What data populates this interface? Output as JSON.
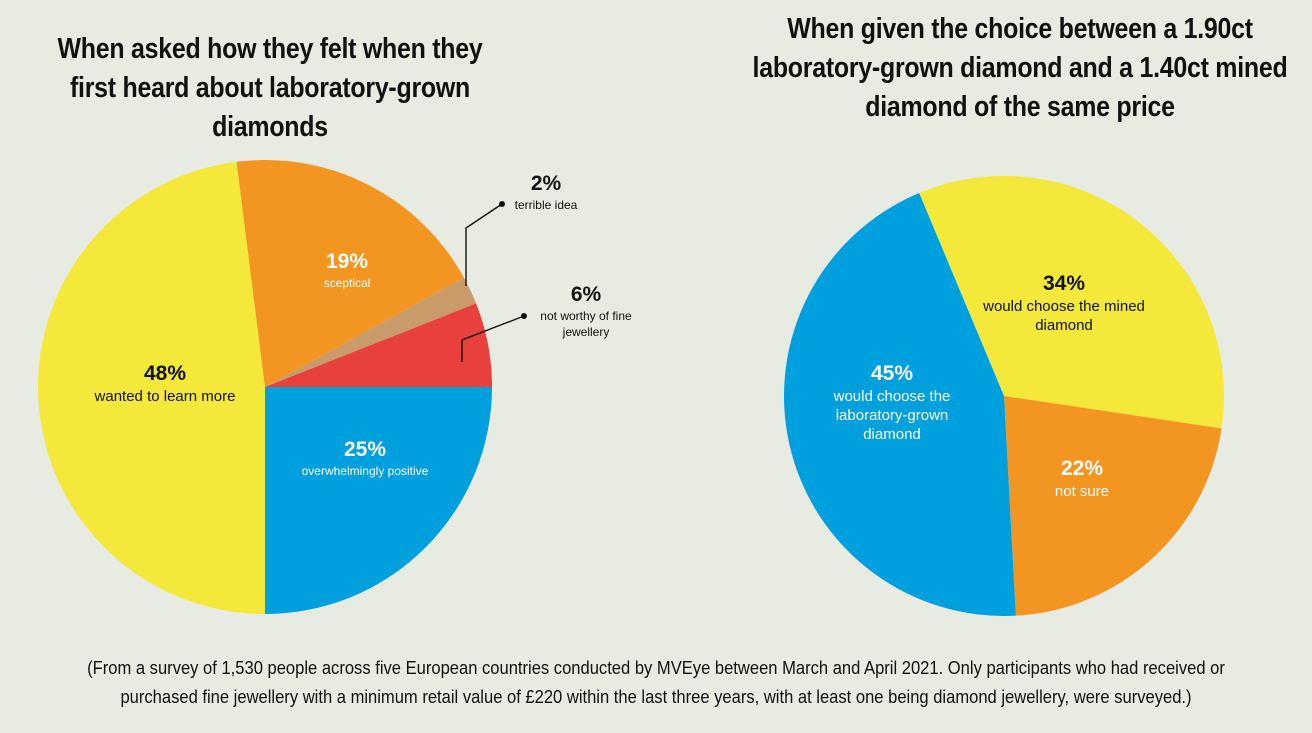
{
  "chart_data": [
    {
      "type": "pie",
      "title": "When asked how they felt when they first heard about laboratory-grown diamonds",
      "slices": [
        {
          "value": 25,
          "pct_label": "25%",
          "label": "overwhelmingly positive",
          "color": "#00a0df"
        },
        {
          "value": 48,
          "pct_label": "48%",
          "label": "wanted to learn more",
          "color": "#f4e83a"
        },
        {
          "value": 19,
          "pct_label": "19%",
          "label": "sceptical",
          "color": "#f39521"
        },
        {
          "value": 2,
          "pct_label": "2%",
          "label": "terrible idea",
          "color": "#c99b6a"
        },
        {
          "value": 6,
          "pct_label": "6%",
          "label": "not worthy of fine jewellery",
          "label_lines": [
            "not worthy of fine",
            "jewellery"
          ],
          "color": "#e8403c"
        }
      ]
    },
    {
      "type": "pie",
      "title": "When given the choice between a 1.90ct laboratory-grown diamond and a 1.40ct mined diamond of the same price",
      "slices": [
        {
          "value": 34,
          "pct_label": "34%",
          "label": "would choose the mined diamond",
          "label_lines": [
            "would choose the mined",
            "diamond"
          ],
          "color": "#f4e83a"
        },
        {
          "value": 22,
          "pct_label": "22%",
          "label": "not sure",
          "color": "#f39521"
        },
        {
          "value": 45,
          "pct_label": "45%",
          "label": "would choose the laboratory-grown diamond",
          "label_lines": [
            "would choose the",
            "laboratory-grown",
            "diamond"
          ],
          "color": "#00a0df"
        }
      ]
    }
  ],
  "footnote": "(From a survey of 1,530 people across five European countries conducted by MVEye between March and April 2021. Only participants who had received or purchased fine jewellery with a minimum retail value of £220 within the last three years, with at least one being diamond jewellery, were surveyed.)"
}
